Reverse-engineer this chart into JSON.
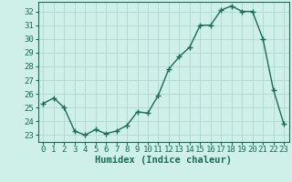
{
  "x": [
    0,
    1,
    2,
    3,
    4,
    5,
    6,
    7,
    8,
    9,
    10,
    11,
    12,
    13,
    14,
    15,
    16,
    17,
    18,
    19,
    20,
    21,
    22,
    23
  ],
  "y": [
    25.3,
    25.7,
    25.0,
    23.3,
    23.0,
    23.4,
    23.1,
    23.3,
    23.7,
    24.7,
    24.6,
    25.9,
    27.8,
    28.7,
    29.4,
    31.0,
    31.0,
    32.1,
    32.4,
    32.0,
    32.0,
    30.0,
    26.3,
    23.8
  ],
  "line_color": "#1a6b5a",
  "marker": "+",
  "markersize": 4,
  "linewidth": 1.0,
  "background_color": "#cef0e8",
  "grid_color": "#b0d8d0",
  "xlabel": "Humidex (Indice chaleur)",
  "xlim": [
    -0.5,
    23.5
  ],
  "ylim": [
    22.5,
    32.7
  ],
  "yticks": [
    23,
    24,
    25,
    26,
    27,
    28,
    29,
    30,
    31,
    32
  ],
  "xticks": [
    0,
    1,
    2,
    3,
    4,
    5,
    6,
    7,
    8,
    9,
    10,
    11,
    12,
    13,
    14,
    15,
    16,
    17,
    18,
    19,
    20,
    21,
    22,
    23
  ],
  "xlabel_fontsize": 7.5,
  "tick_fontsize": 6.5
}
